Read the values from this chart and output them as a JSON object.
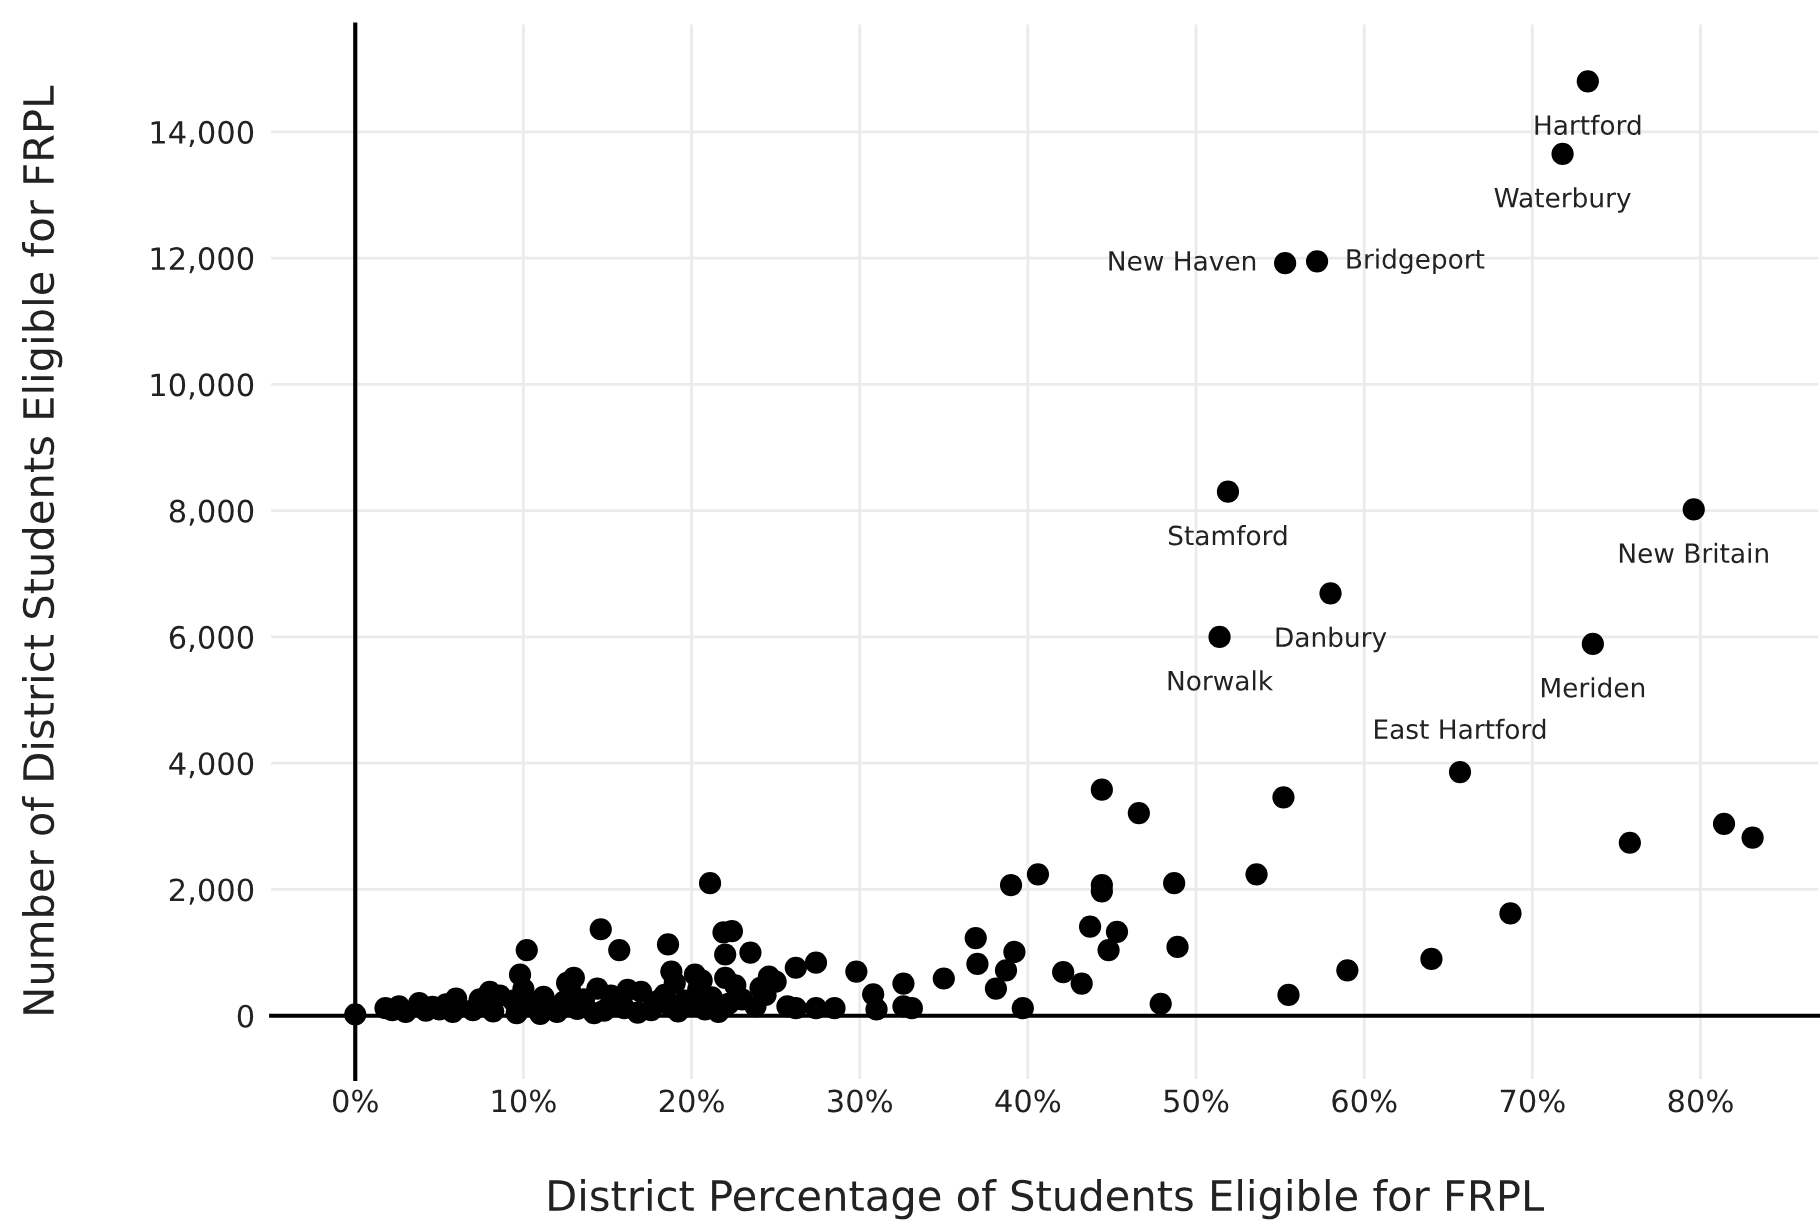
{
  "chart_data": {
    "type": "scatter",
    "xlabel": "District Percentage of Students Eligible for FRPL",
    "ylabel": "Number of District Students Eligible for FRPL",
    "xlim": [
      -5,
      87
    ],
    "ylim": [
      -1000,
      15700
    ],
    "xticks": [
      {
        "value": 0,
        "label": "0%"
      },
      {
        "value": 10,
        "label": "10%"
      },
      {
        "value": 20,
        "label": "20%"
      },
      {
        "value": 30,
        "label": "30%"
      },
      {
        "value": 40,
        "label": "40%"
      },
      {
        "value": 50,
        "label": "50%"
      },
      {
        "value": 60,
        "label": "60%"
      },
      {
        "value": 70,
        "label": "70%"
      },
      {
        "value": 80,
        "label": "80%"
      }
    ],
    "yticks": [
      0,
      {
        "value": 2000,
        "label": "2,000"
      },
      {
        "value": 4000,
        "label": "4,000"
      },
      {
        "value": 6000,
        "label": "6,000"
      },
      {
        "value": 8000,
        "label": "8,000"
      },
      {
        "value": 10000,
        "label": "10,000"
      },
      {
        "value": 12000,
        "label": "12,000"
      },
      {
        "value": 14000,
        "label": "14,000"
      }
    ],
    "grid": true,
    "marker": "circle",
    "series": [
      {
        "color": "#000000",
        "x": [
          73.3,
          71.8,
          55.3,
          57.2,
          51.9,
          79.6,
          58.0,
          51.4,
          73.6,
          65.7,
          55.2,
          75.8,
          81.4,
          83.1,
          68.7,
          64.0,
          59.0,
          55.5,
          44.4,
          46.6,
          40.6,
          39.0,
          44.4,
          44.4,
          48.7,
          53.6,
          43.7,
          45.3,
          44.8,
          48.9,
          36.9,
          37.0,
          39.2,
          38.7,
          38.1,
          42.1,
          43.2,
          39.7,
          47.9,
          35.0,
          32.6,
          29.8,
          30.8,
          31.0,
          32.6,
          33.1,
          27.4,
          26.2,
          25.7,
          27.4,
          28.5,
          23.5,
          24.6,
          24.1,
          21.9,
          22.0,
          22.2,
          0,
          10.2,
          14.6,
          15.7,
          18.6,
          21.1,
          22.4,
          22.0,
          9.8,
          13.0,
          18.8,
          20.2,
          1.8,
          2.2,
          2.6,
          3.0,
          3.8,
          4.2,
          4.6,
          5.0,
          5.4,
          5.8,
          7.0,
          7.4,
          8.2,
          8.6,
          9.4,
          9.6,
          10.0,
          10.4,
          11.2,
          12.0,
          12.4,
          12.8,
          13.2,
          13.6,
          14.4,
          14.8,
          15.2,
          16.0,
          16.8,
          17.6,
          18.0,
          18.4,
          18.8,
          19.2,
          19.6,
          20.0,
          20.4,
          20.8,
          21.2,
          21.6,
          22.6,
          23.0,
          23.8,
          24.4,
          25.0,
          26.2,
          14.2,
          12.6,
          16.2,
          8.0,
          6.0,
          19.0,
          20.6,
          11.0,
          17.0
        ],
        "values": [
          14800,
          13650,
          11920,
          11950,
          8300,
          8020,
          6690,
          6000,
          5890,
          3860,
          3460,
          2740,
          3040,
          2820,
          1620,
          900,
          720,
          330,
          3580,
          3210,
          2240,
          2070,
          2070,
          1970,
          2100,
          2240,
          1410,
          1330,
          1040,
          1090,
          1230,
          820,
          1010,
          720,
          430,
          690,
          510,
          120,
          190,
          590,
          510,
          700,
          340,
          100,
          150,
          120,
          840,
          760,
          150,
          120,
          120,
          1000,
          620,
          440,
          1320,
          600,
          190,
          20,
          1040,
          1370,
          1040,
          1130,
          2100,
          1340,
          970,
          650,
          600,
          700,
          650,
          120,
          90,
          150,
          60,
          200,
          80,
          140,
          100,
          180,
          60,
          90,
          260,
          70,
          320,
          240,
          40,
          420,
          180,
          300,
          60,
          220,
          380,
          110,
          260,
          430,
          80,
          320,
          120,
          50,
          90,
          230,
          330,
          140,
          70,
          240,
          160,
          420,
          100,
          290,
          60,
          480,
          260,
          150,
          330,
          540,
          120,
          40,
          520,
          410,
          380,
          270,
          520,
          560,
          30,
          380
        ]
      }
    ],
    "annotations": [
      {
        "text": "Hartford",
        "x": 73.3,
        "y": 14800
      },
      {
        "text": "Waterbury",
        "x": 71.8,
        "y": 13650
      },
      {
        "text": "New Haven",
        "x": 55.3,
        "y": 11920
      },
      {
        "text": "Bridgeport",
        "x": 57.2,
        "y": 11950
      },
      {
        "text": "Stamford",
        "x": 51.9,
        "y": 8300
      },
      {
        "text": "New Britain",
        "x": 79.6,
        "y": 8020
      },
      {
        "text": "Danbury",
        "x": 58.0,
        "y": 6690
      },
      {
        "text": "Norwalk",
        "x": 51.4,
        "y": 6000
      },
      {
        "text": "Meriden",
        "x": 73.6,
        "y": 5890
      },
      {
        "text": "East Hartford",
        "x": 65.7,
        "y": 3860
      }
    ]
  }
}
